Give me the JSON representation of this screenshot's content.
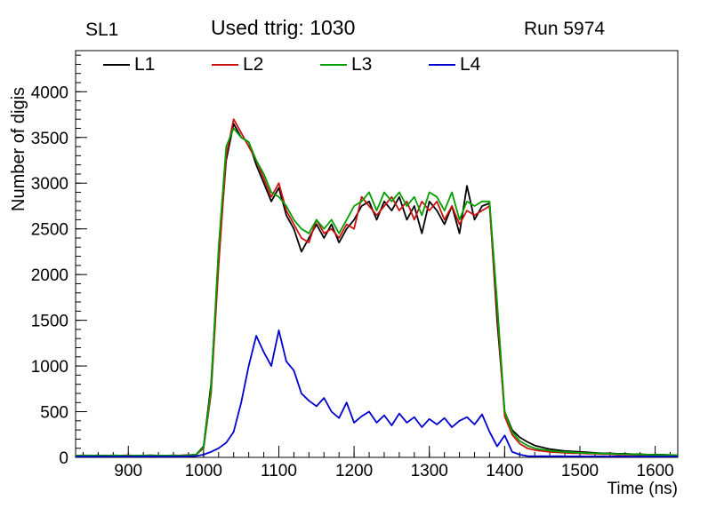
{
  "header": {
    "left": "SL1",
    "right": "Run 5974"
  },
  "chart_data": {
    "type": "line",
    "title": "Used ttrig: 1030",
    "xlabel": "Time (ns)",
    "ylabel": "Number of digis",
    "xlim": [
      830,
      1630
    ],
    "ylim": [
      0,
      4450
    ],
    "x_ticks": [
      900,
      1000,
      1100,
      1200,
      1300,
      1400,
      1500,
      1600
    ],
    "y_ticks": [
      0,
      500,
      1000,
      1500,
      2000,
      2500,
      3000,
      3500,
      4000
    ],
    "x_minor": 20,
    "y_minor": 100,
    "grid": false,
    "legend_position": "top-inside",
    "x_start": 830,
    "x_step": 10,
    "series": [
      {
        "name": "L1",
        "color": "#000000",
        "values": [
          15,
          20,
          18,
          22,
          17,
          20,
          19,
          21,
          18,
          20,
          22,
          19,
          20,
          18,
          21,
          25,
          30,
          120,
          800,
          2200,
          3250,
          3650,
          3500,
          3450,
          3200,
          3000,
          2800,
          2950,
          2650,
          2500,
          2250,
          2400,
          2550,
          2400,
          2550,
          2350,
          2500,
          2600,
          2750,
          2800,
          2600,
          2800,
          2700,
          2850,
          2600,
          2750,
          2450,
          2800,
          2700,
          2550,
          2750,
          2450,
          2970,
          2600,
          2750,
          2780,
          1500,
          500,
          300,
          220,
          170,
          130,
          110,
          90,
          80,
          70,
          65,
          60,
          55,
          50,
          45,
          45,
          40,
          40,
          35,
          35,
          30,
          30,
          30,
          25,
          25
        ]
      },
      {
        "name": "L2",
        "color": "#cc1111",
        "values": [
          18,
          22,
          20,
          19,
          21,
          18,
          20,
          22,
          19,
          21,
          18,
          20,
          19,
          22,
          20,
          24,
          28,
          100,
          700,
          2100,
          3300,
          3700,
          3550,
          3400,
          3250,
          3050,
          2850,
          3000,
          2700,
          2550,
          2400,
          2350,
          2600,
          2450,
          2500,
          2400,
          2550,
          2500,
          2850,
          2750,
          2650,
          2750,
          2850,
          2700,
          2800,
          2600,
          2800,
          2700,
          2800,
          2600,
          2750,
          2550,
          2700,
          2650,
          2700,
          2750,
          1600,
          450,
          250,
          150,
          100,
          80,
          70,
          60,
          55,
          50,
          45,
          45,
          40,
          40,
          35,
          35,
          30,
          30,
          28,
          28,
          25,
          25,
          22,
          20,
          20
        ]
      },
      {
        "name": "L3",
        "color": "#00a000",
        "values": [
          20,
          18,
          21,
          20,
          19,
          22,
          20,
          18,
          21,
          19,
          22,
          20,
          19,
          21,
          18,
          23,
          30,
          110,
          750,
          2300,
          3400,
          3600,
          3500,
          3450,
          3250,
          3100,
          2900,
          2850,
          2750,
          2600,
          2500,
          2450,
          2600,
          2500,
          2600,
          2450,
          2600,
          2750,
          2800,
          2900,
          2700,
          2900,
          2800,
          2900,
          2750,
          2850,
          2650,
          2900,
          2850,
          2700,
          2900,
          2600,
          2800,
          2750,
          2800,
          2800,
          1700,
          500,
          280,
          180,
          130,
          100,
          85,
          75,
          65,
          60,
          55,
          50,
          48,
          45,
          42,
          40,
          38,
          35,
          33,
          32,
          30,
          28,
          27,
          26,
          25
        ]
      },
      {
        "name": "L4",
        "color": "#0000cc",
        "values": [
          8,
          10,
          9,
          11,
          10,
          9,
          10,
          11,
          9,
          10,
          12,
          10,
          9,
          11,
          10,
          12,
          15,
          30,
          60,
          100,
          160,
          280,
          600,
          1000,
          1330,
          1150,
          1000,
          1390,
          1050,
          950,
          700,
          620,
          560,
          650,
          500,
          430,
          600,
          380,
          450,
          500,
          380,
          460,
          350,
          480,
          380,
          440,
          330,
          420,
          360,
          430,
          330,
          400,
          440,
          360,
          470,
          280,
          120,
          240,
          60,
          30,
          15,
          12,
          14,
          12,
          13,
          12,
          11,
          12,
          10,
          12,
          11,
          10,
          12,
          11,
          10,
          11,
          10,
          11,
          10,
          10,
          10
        ]
      }
    ]
  }
}
